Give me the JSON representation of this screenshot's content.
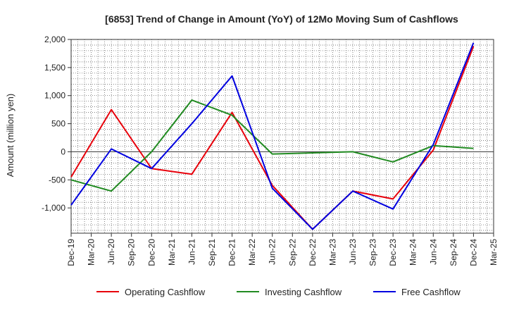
{
  "chart_data": {
    "type": "line",
    "title": "[6853]  Trend of Change in Amount (YoY) of 12Mo Moving Sum of Cashflows",
    "ylabel": "Amount (million yen)",
    "xlabel": "",
    "ylim": [
      -1450,
      2000
    ],
    "yticks": [
      2000,
      1500,
      1000,
      500,
      0,
      -500,
      -1000
    ],
    "ytick_labels": [
      "2,000",
      "1,500",
      "1,000",
      "500",
      "0",
      "-500",
      "-1,000"
    ],
    "x_labels": [
      "Dec-19",
      "Mar-20",
      "Jun-20",
      "Sep-20",
      "Dec-20",
      "Mar-21",
      "Jun-21",
      "Sep-21",
      "Dec-21",
      "Mar-22",
      "Jun-22",
      "Sep-22",
      "Dec-22",
      "Mar-23",
      "Jun-23",
      "Sep-23",
      "Dec-23",
      "Mar-24",
      "Jun-24",
      "Sep-24",
      "Dec-24",
      "Mar-25"
    ],
    "legend_position": "bottom",
    "series": [
      {
        "name": "Operating Cashflow",
        "color": "#e8000b",
        "points": [
          [
            0,
            -450
          ],
          [
            2,
            750
          ],
          [
            4,
            -300
          ],
          [
            6,
            -400
          ],
          [
            8,
            700
          ],
          [
            10,
            -600
          ],
          [
            12,
            -1380
          ],
          [
            14,
            -700
          ],
          [
            16,
            -840
          ],
          [
            18,
            30
          ],
          [
            20,
            1880
          ]
        ]
      },
      {
        "name": "Investing Cashflow",
        "color": "#228b22",
        "points": [
          [
            0,
            -500
          ],
          [
            2,
            -700
          ],
          [
            4,
            0
          ],
          [
            6,
            920
          ],
          [
            8,
            650
          ],
          [
            10,
            -40
          ],
          [
            14,
            0
          ],
          [
            16,
            -180
          ],
          [
            18,
            110
          ],
          [
            20,
            60
          ]
        ]
      },
      {
        "name": "Free Cashflow",
        "color": "#0000e0",
        "points": [
          [
            0,
            -950
          ],
          [
            2,
            50
          ],
          [
            4,
            -300
          ],
          [
            6,
            500
          ],
          [
            8,
            1350
          ],
          [
            10,
            -650
          ],
          [
            12,
            -1380
          ],
          [
            14,
            -700
          ],
          [
            16,
            -1020
          ],
          [
            18,
            130
          ],
          [
            20,
            1940
          ]
        ]
      }
    ]
  }
}
